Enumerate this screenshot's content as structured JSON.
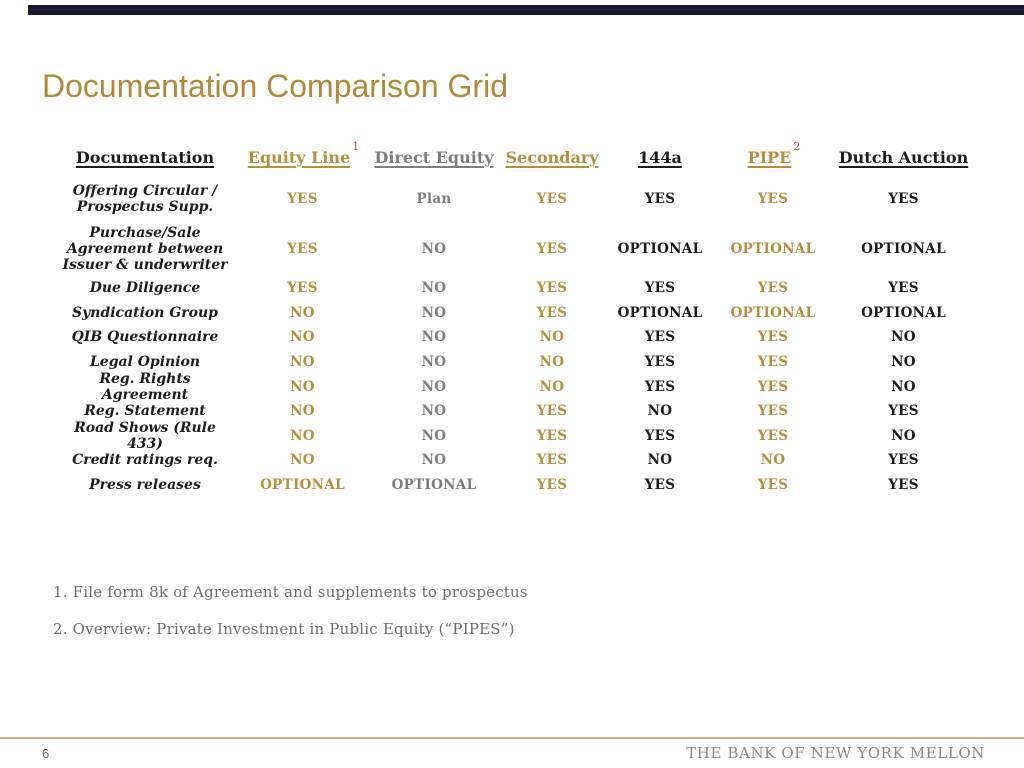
{
  "slide": {
    "title": "Documentation Comparison Grid",
    "page_number": "6",
    "brand": "THE BANK OF NEW YORK MELLON"
  },
  "colors": {
    "title_gold": "#AE8A3B",
    "value_gold": "#B3903D",
    "value_gray": "#7D7D7D",
    "value_black": "#1C1C1C",
    "footnote_ref_red": "#E4453A",
    "top_bar_navy": "#1A1A31",
    "footer_line_tan": "#C2B181",
    "footnote_gray": "#6F6F6F",
    "brand_gray": "#8A8A8A"
  },
  "table": {
    "columns": [
      {
        "label": "Documentation",
        "tone": "black",
        "sup": ""
      },
      {
        "label": "Equity Line",
        "tone": "gold",
        "sup": "1"
      },
      {
        "label": "Direct Equity",
        "tone": "gray",
        "sup": ""
      },
      {
        "label": "Secondary",
        "tone": "gold",
        "sup": ""
      },
      {
        "label": "144a",
        "tone": "black",
        "sup": ""
      },
      {
        "label": "PIPE",
        "tone": "gold",
        "sup": "2"
      },
      {
        "label": "Dutch Auction",
        "tone": "black",
        "sup": ""
      }
    ],
    "rows": [
      {
        "label": "Offering Circular / Prospectus Supp.",
        "values": [
          "YES",
          "Plan",
          "YES",
          "YES",
          "YES",
          "YES"
        ]
      },
      {
        "label": "Purchase/Sale Agreement between Issuer & underwriter",
        "values": [
          "YES",
          "NO",
          "YES",
          "OPTIONAL",
          "OPTIONAL",
          "OPTIONAL"
        ]
      },
      {
        "label": "Due Diligence",
        "values": [
          "YES",
          "NO",
          "YES",
          "YES",
          "YES",
          "YES"
        ]
      },
      {
        "label": "Syndication Group",
        "values": [
          "NO",
          "NO",
          "YES",
          "OPTIONAL",
          "OPTIONAL",
          "OPTIONAL"
        ]
      },
      {
        "label": "QIB Questionnaire",
        "values": [
          "NO",
          "NO",
          "NO",
          "YES",
          "YES",
          "NO"
        ]
      },
      {
        "label": "Legal Opinion",
        "values": [
          "NO",
          "NO",
          "NO",
          "YES",
          "YES",
          "NO"
        ]
      },
      {
        "label": "Reg. Rights Agreement",
        "values": [
          "NO",
          "NO",
          "NO",
          "YES",
          "YES",
          "NO"
        ]
      },
      {
        "label": "Reg. Statement",
        "values": [
          "NO",
          "NO",
          "YES",
          "NO",
          "YES",
          "YES"
        ]
      },
      {
        "label": "Road Shows (Rule 433)",
        "values": [
          "NO",
          "NO",
          "YES",
          "YES",
          "YES",
          "NO"
        ]
      },
      {
        "label": "Credit ratings req.",
        "values": [
          "NO",
          "NO",
          "YES",
          "NO",
          "NO",
          "YES"
        ]
      },
      {
        "label": "Press releases",
        "values": [
          "OPTIONAL",
          "OPTIONAL",
          "YES",
          "YES",
          "YES",
          "YES"
        ]
      }
    ]
  },
  "footnotes": [
    "1. File form 8k of Agreement and supplements to prospectus",
    "2. Overview: Private Investment in Public Equity (“PIPES”)"
  ]
}
